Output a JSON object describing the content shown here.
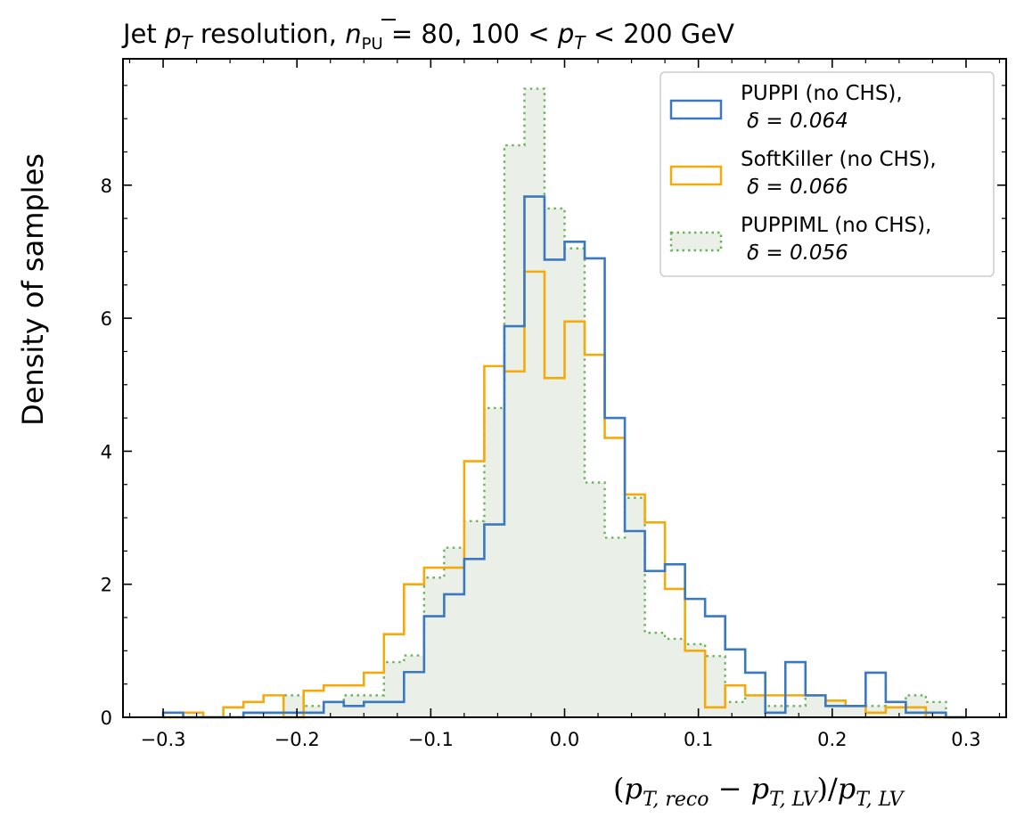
{
  "chart_data": {
    "type": "histogram",
    "title": "Jet pT resolution, n̄PU = 80, 100 < pT < 200 GeV",
    "xlabel": "(pT,reco − pT,LV)/pT,LV",
    "ylabel": "Density of samples",
    "xlim": [
      -0.33,
      0.33
    ],
    "ylim": [
      0,
      9.9
    ],
    "x_ticks": [
      -0.3,
      -0.2,
      -0.1,
      0.0,
      0.1,
      0.2,
      0.3
    ],
    "x_tick_labels": [
      "−0.3",
      "−0.2",
      "−0.1",
      "0.0",
      "0.1",
      "0.2",
      "0.3"
    ],
    "y_ticks": [
      0,
      2,
      4,
      6,
      8
    ],
    "y_tick_labels": [
      "0",
      "2",
      "4",
      "6",
      "8"
    ],
    "legend_position": "upper-right",
    "bin_edges": [
      -0.3,
      -0.285,
      -0.27,
      -0.255,
      -0.24,
      -0.225,
      -0.21,
      -0.195,
      -0.18,
      -0.165,
      -0.15,
      -0.135,
      -0.12,
      -0.105,
      -0.09,
      -0.075,
      -0.06,
      -0.045,
      -0.03,
      -0.015,
      0.0,
      0.015,
      0.03,
      0.045,
      0.06,
      0.075,
      0.09,
      0.105,
      0.12,
      0.135,
      0.15,
      0.165,
      0.18,
      0.195,
      0.21,
      0.225,
      0.24,
      0.255,
      0.27,
      0.285,
      0.3
    ],
    "series": [
      {
        "name": "PUPPI (no CHS),",
        "delta": "δ = 0.064",
        "color": "#3a78c0",
        "style": "step",
        "values": [
          0.07,
          0,
          0,
          0,
          0.07,
          0.07,
          0.07,
          0.07,
          0.23,
          0.17,
          0.23,
          0.23,
          0.68,
          1.52,
          1.85,
          2.38,
          2.9,
          5.88,
          7.83,
          6.88,
          7.15,
          6.9,
          4.5,
          2.8,
          2.2,
          2.3,
          1.78,
          1.52,
          1.02,
          0.67,
          0.07,
          0.83,
          0.33,
          0.17,
          0.17,
          0.67,
          0.23,
          0.07,
          0.07,
          0
        ]
      },
      {
        "name": "SoftKiller (no CHS),",
        "delta": "δ = 0.066",
        "color": "#f5aa0c",
        "style": "step",
        "values": [
          0,
          0.07,
          0,
          0.15,
          0.23,
          0.33,
          0,
          0.4,
          0.48,
          0.48,
          0.67,
          1.25,
          2.0,
          2.25,
          2.25,
          3.85,
          5.28,
          5.2,
          6.7,
          5.1,
          5.95,
          5.45,
          4.2,
          3.35,
          2.93,
          1.93,
          1.0,
          0.15,
          0.48,
          0.33,
          0.33,
          0.33,
          0.33,
          0.25,
          0.17,
          0.07,
          0.15,
          0.15,
          0,
          0
        ]
      },
      {
        "name": "PUPPIML (no CHS),",
        "delta": "δ = 0.056",
        "color": "#6bb35b",
        "style": "filled-dotted",
        "values": [
          0,
          0,
          0,
          0,
          0.07,
          0.07,
          0.33,
          0.17,
          0.23,
          0.33,
          0.33,
          0.83,
          0.93,
          2.1,
          2.55,
          2.95,
          4.65,
          8.6,
          9.45,
          7.65,
          7.05,
          3.53,
          2.7,
          3.3,
          1.27,
          1.18,
          1.1,
          0.92,
          0.23,
          0.33,
          0.17,
          0.17,
          0.33,
          0.25,
          0.17,
          0.17,
          0.15,
          0.33,
          0.23,
          0
        ]
      }
    ]
  },
  "text": {
    "title_parts": {
      "prefix": "Jet ",
      "pt_p": "p",
      "pt_sub": "T",
      "mid1": " resolution, ",
      "n": "n",
      "n_sub": "PU",
      "eq": " = 80, 100 < ",
      "pt2_p": "p",
      "pt2_sub": "T",
      "suffix": " < 200 GeV"
    },
    "xlabel_parts": {
      "open": "(",
      "p1": "p",
      "s1": "T, reco",
      "minus": " − ",
      "p2": "p",
      "s2": "T, LV",
      "close": ")/",
      "p3": "p",
      "s3": "T, LV"
    }
  }
}
